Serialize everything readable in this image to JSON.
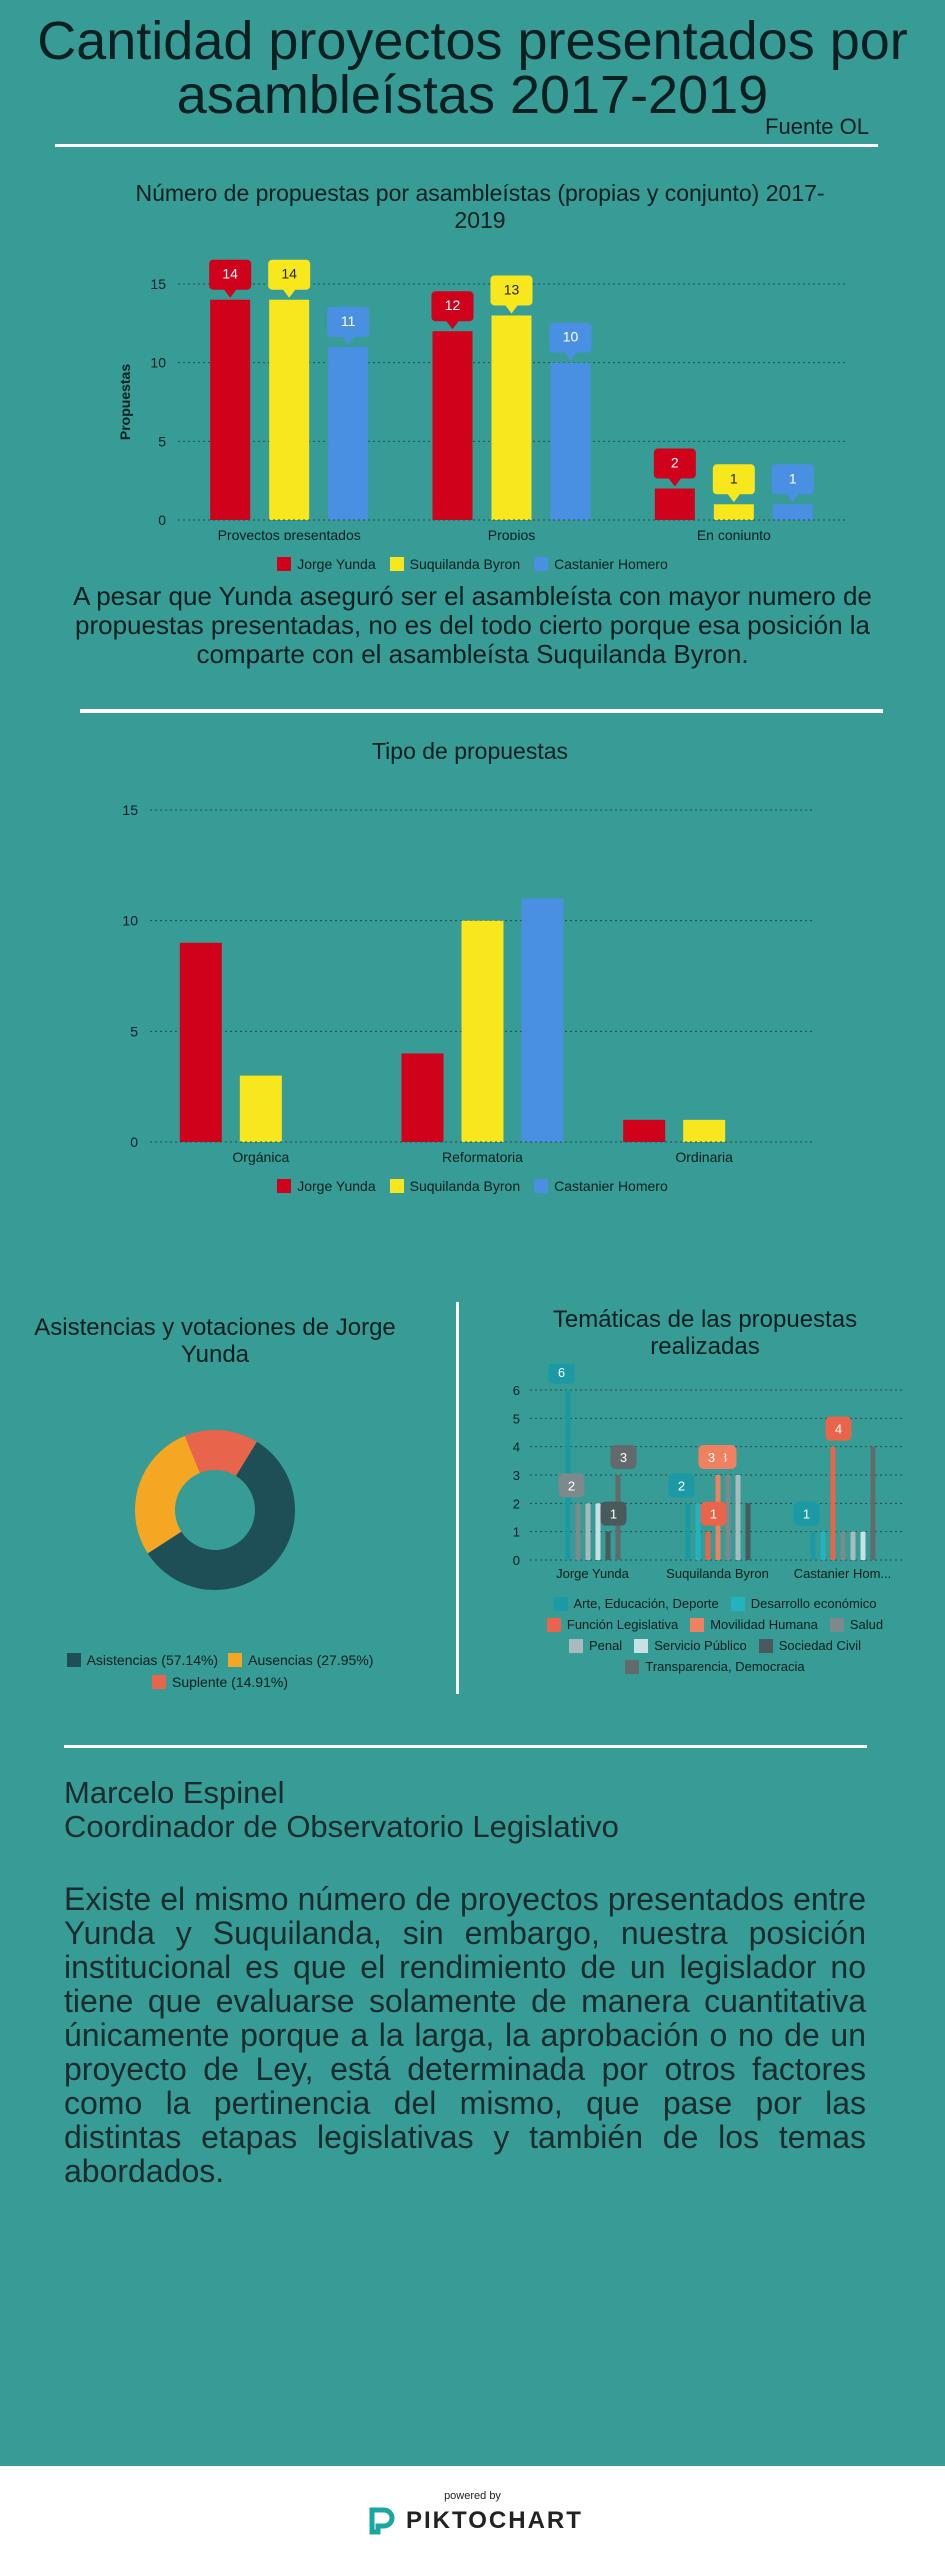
{
  "header": {
    "title_line1": "Cantidad proyectos presentados por",
    "title_line2": "asambleístas 2017-2019",
    "source": "Fuente OL"
  },
  "colors": {
    "jorge": "#d0021b",
    "suquilanda": "#f8e71c",
    "castanier": "#4a90e2",
    "grid": "#2b4a4c",
    "asistencias": "#1e4f57",
    "ausencias": "#f5a623",
    "suplente": "#e8644a"
  },
  "paragraph1": "A pesar que Yunda aseguró ser el asambleísta con mayor numero de propuestas presentadas, no es del todo cierto porque esa posición la comparte con el asambleísta Suquilanda Byron.",
  "chart_data": [
    {
      "type": "bar",
      "title": "Número de propuestas por asambleístas (propias y conjunto) 2017-2019",
      "ylabel": "Propuestas",
      "xlabel": "",
      "categories": [
        "Proyectos presentados",
        "Propios",
        "En conjunto"
      ],
      "series": [
        {
          "name": "Jorge Yunda",
          "values": [
            14,
            12,
            2
          ]
        },
        {
          "name": "Suquilanda Byron",
          "values": [
            14,
            13,
            1
          ]
        },
        {
          "name": "Castanier Homero",
          "values": [
            11,
            10,
            1
          ]
        }
      ],
      "ylim": [
        0,
        15
      ],
      "yticks": [
        0,
        5,
        10,
        15
      ],
      "data_labels": true,
      "grid": true,
      "legend": "bottom"
    },
    {
      "type": "bar",
      "title": "Tipo de propuestas",
      "categories": [
        "Orgánica",
        "Reformatoria",
        "Ordinaria"
      ],
      "series": [
        {
          "name": "Jorge Yunda",
          "values": [
            9,
            4,
            1
          ]
        },
        {
          "name": "Suquilanda Byron",
          "values": [
            3,
            10,
            1
          ]
        },
        {
          "name": "Castanier Homero",
          "values": [
            0,
            11,
            0
          ]
        }
      ],
      "ylim": [
        0,
        15
      ],
      "yticks": [
        0,
        5,
        10,
        15
      ],
      "grid": true,
      "legend": "bottom"
    },
    {
      "type": "pie",
      "donut": true,
      "title": "Asistencias y votaciones de Jorge Yunda",
      "slices": [
        {
          "label": "Asistencias (57.14%)",
          "value": 57.14
        },
        {
          "label": "Ausencias (27.95%)",
          "value": 27.95
        },
        {
          "label": "Suplente (14.91%)",
          "value": 14.91
        }
      ],
      "legend": "bottom"
    },
    {
      "type": "bar",
      "title": "Temáticas de las propuestas realizadas",
      "categories": [
        "Jorge Yunda",
        "Suquilanda Byron",
        "Castanier Hom..."
      ],
      "series": [
        {
          "name": "Arte, Educación, Deporte",
          "color": "#1b9aa6",
          "values": [
            6,
            2,
            1
          ]
        },
        {
          "name": "Desarrollo económico",
          "color": "#21b3bf",
          "values": [
            0,
            2,
            1
          ]
        },
        {
          "name": "Función Legislativa",
          "color": "#e8644a",
          "values": [
            0,
            1,
            4
          ]
        },
        {
          "name": "Movilidad Humana",
          "color": "#f08160",
          "values": [
            0,
            3,
            0
          ]
        },
        {
          "name": "Salud",
          "color": "#7d8a8c",
          "values": [
            2,
            3,
            1
          ]
        },
        {
          "name": "Penal",
          "color": "#a9babc",
          "values": [
            2,
            3,
            1
          ]
        },
        {
          "name": "Servicio Público",
          "color": "#c8e2e4",
          "values": [
            2,
            0,
            1
          ]
        },
        {
          "name": "Sociedad Civil",
          "color": "#4a5a5c",
          "values": [
            1,
            2,
            0
          ]
        },
        {
          "name": "Transparencia, Democracia",
          "color": "#626a6c",
          "values": [
            3,
            0,
            4
          ]
        }
      ],
      "visible_labels": [
        [
          "6",
          "3",
          "2",
          "1"
        ],
        [
          "2",
          "3",
          "3",
          "1",
          "2"
        ],
        [
          "1",
          "4",
          "1",
          "4"
        ]
      ],
      "ylim": [
        0,
        6
      ],
      "yticks": [
        0,
        1,
        2,
        3,
        4,
        5,
        6
      ],
      "grid": true,
      "legend": "bottom"
    }
  ],
  "legend_persons": [
    "Jorge Yunda",
    "Suquilanda Byron",
    "Castanier Homero"
  ],
  "author": {
    "name": "Marcelo Espinel",
    "role": "Coordinador de Observatorio Legislativo"
  },
  "paragraph2": "Existe el mismo número de proyectos presentados entre Yunda y Suquilanda, sin embargo, nuestra posición institucional es que el rendimiento de un legislador no tiene que evaluarse solamente de manera cuantitativa únicamente porque a la larga, la aprobación o no de un proyecto de Ley, está determinada por otros factores como la pertinencia del mismo, que pase por las distintas etapas legislativas y también de los temas abordados.",
  "footer": {
    "powered_by": "powered by",
    "brand": "PIKTOCHART",
    "logo_icon": "piktochart-logo-icon"
  }
}
